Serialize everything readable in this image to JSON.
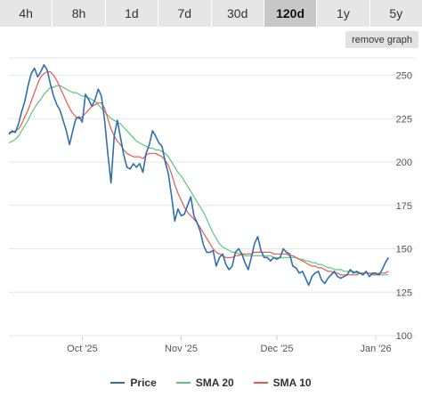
{
  "ranges": [
    "4h",
    "8h",
    "1d",
    "7d",
    "30d",
    "120d",
    "1y",
    "5y"
  ],
  "active_range": "120d",
  "remove_graph_label": "remove graph",
  "chart_data": {
    "type": "line",
    "title": "",
    "xlabel": "",
    "ylabel": "",
    "ylim": [
      100,
      260
    ],
    "yticks": [
      100,
      125,
      150,
      175,
      200,
      225,
      250
    ],
    "xlim": [
      0,
      120
    ],
    "xticks": [
      {
        "x": 23,
        "label": "Oct '25"
      },
      {
        "x": 54,
        "label": "Nov '25"
      },
      {
        "x": 84,
        "label": "Dec '25"
      },
      {
        "x": 115,
        "label": "Jan '26"
      }
    ],
    "grid": true,
    "legend_position": "bottom",
    "series": [
      {
        "name": "Price",
        "color": "#2f6fae",
        "values": [
          216,
          218,
          217,
          222,
          229,
          235,
          244,
          251,
          254,
          249,
          252,
          256,
          253,
          245,
          238,
          233,
          230,
          224,
          218,
          210,
          218,
          225,
          226,
          223,
          239,
          236,
          232,
          236,
          242,
          238,
          224,
          205,
          188,
          215,
          224,
          214,
          204,
          197,
          196,
          199,
          197,
          199,
          194,
          205,
          210,
          218,
          215,
          211,
          209,
          200,
          193,
          180,
          166,
          173,
          169,
          170,
          175,
          180,
          169,
          165,
          160,
          152,
          148,
          148,
          149,
          140,
          145,
          147,
          141,
          138,
          140,
          148,
          150,
          147,
          142,
          138,
          145,
          153,
          157,
          149,
          145,
          145,
          143,
          145,
          144,
          145,
          150,
          148,
          147,
          140,
          139,
          136,
          137,
          133,
          129,
          134,
          136,
          137,
          132,
          130,
          133,
          135,
          137,
          134,
          133,
          134,
          135,
          138,
          136,
          137,
          136,
          135,
          137,
          134,
          136,
          136,
          135,
          138,
          142,
          145
        ]
      },
      {
        "name": "SMA 20",
        "color": "#5fc37d",
        "values": [
          211,
          212,
          213,
          215,
          218,
          221,
          224,
          228,
          231,
          234,
          236,
          239,
          241,
          243,
          243,
          244,
          244,
          243,
          242,
          241,
          240,
          240,
          239,
          238,
          238,
          237,
          236,
          235,
          233,
          231,
          229,
          227,
          225,
          224,
          223,
          222,
          220,
          218,
          216,
          214,
          212,
          211,
          210,
          209,
          208,
          208,
          207,
          207,
          206,
          205,
          203,
          200,
          197,
          194,
          192,
          189,
          186,
          183,
          180,
          177,
          174,
          171,
          167,
          163,
          159,
          156,
          153,
          151,
          150,
          149,
          148,
          148,
          147,
          147,
          146,
          146,
          146,
          146,
          146,
          146,
          146,
          146,
          146,
          145,
          145,
          145,
          145,
          145,
          145,
          145,
          145,
          144,
          144,
          143,
          143,
          142,
          142,
          141,
          141,
          140,
          139,
          139,
          138,
          138,
          138,
          137,
          137,
          137,
          137,
          136,
          136,
          136,
          136,
          136,
          136,
          135,
          135,
          135,
          135,
          135
        ]
      },
      {
        "name": "SMA 10",
        "color": "#e8584f",
        "values": [
          217,
          217,
          218,
          219,
          222,
          226,
          230,
          235,
          240,
          245,
          249,
          251,
          252,
          252,
          250,
          247,
          243,
          239,
          235,
          231,
          228,
          226,
          225,
          226,
          228,
          230,
          232,
          233,
          234,
          234,
          231,
          225,
          219,
          215,
          212,
          210,
          207,
          205,
          204,
          203,
          203,
          203,
          202,
          204,
          205,
          205,
          205,
          204,
          203,
          201,
          198,
          193,
          187,
          182,
          178,
          174,
          171,
          169,
          167,
          165,
          162,
          159,
          156,
          153,
          150,
          148,
          147,
          146,
          145,
          145,
          145,
          146,
          146,
          147,
          147,
          147,
          147,
          148,
          148,
          148,
          148,
          148,
          148,
          147,
          147,
          147,
          147,
          147,
          146,
          146,
          145,
          144,
          143,
          142,
          141,
          140,
          140,
          139,
          139,
          138,
          137,
          137,
          136,
          136,
          135,
          135,
          135,
          135,
          135,
          135,
          136,
          136,
          136,
          136,
          135,
          135,
          136,
          136,
          136,
          137
        ]
      }
    ]
  }
}
